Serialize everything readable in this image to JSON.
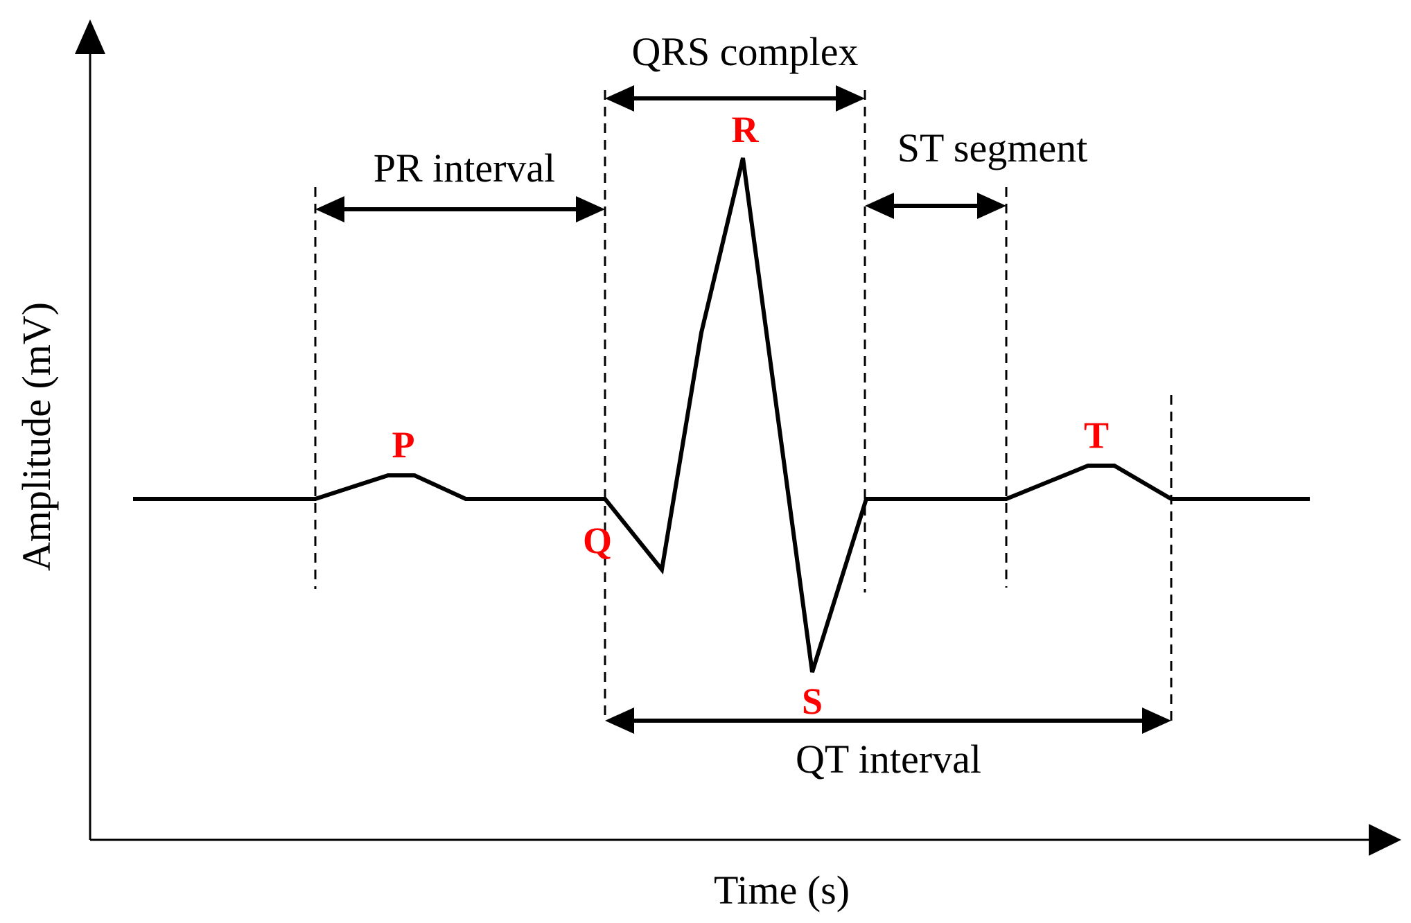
{
  "axes": {
    "x_label": "Time (s)",
    "y_label": "Amplitude (mV)"
  },
  "waves": {
    "p": "P",
    "q": "Q",
    "r": "R",
    "s": "S",
    "t": "T"
  },
  "intervals": {
    "pr": "PR interval",
    "qrs": "QRS complex",
    "st": "ST segment",
    "qt": "QT interval"
  },
  "colors": {
    "wave_labels": "#ff0000",
    "lines": "#000000"
  }
}
